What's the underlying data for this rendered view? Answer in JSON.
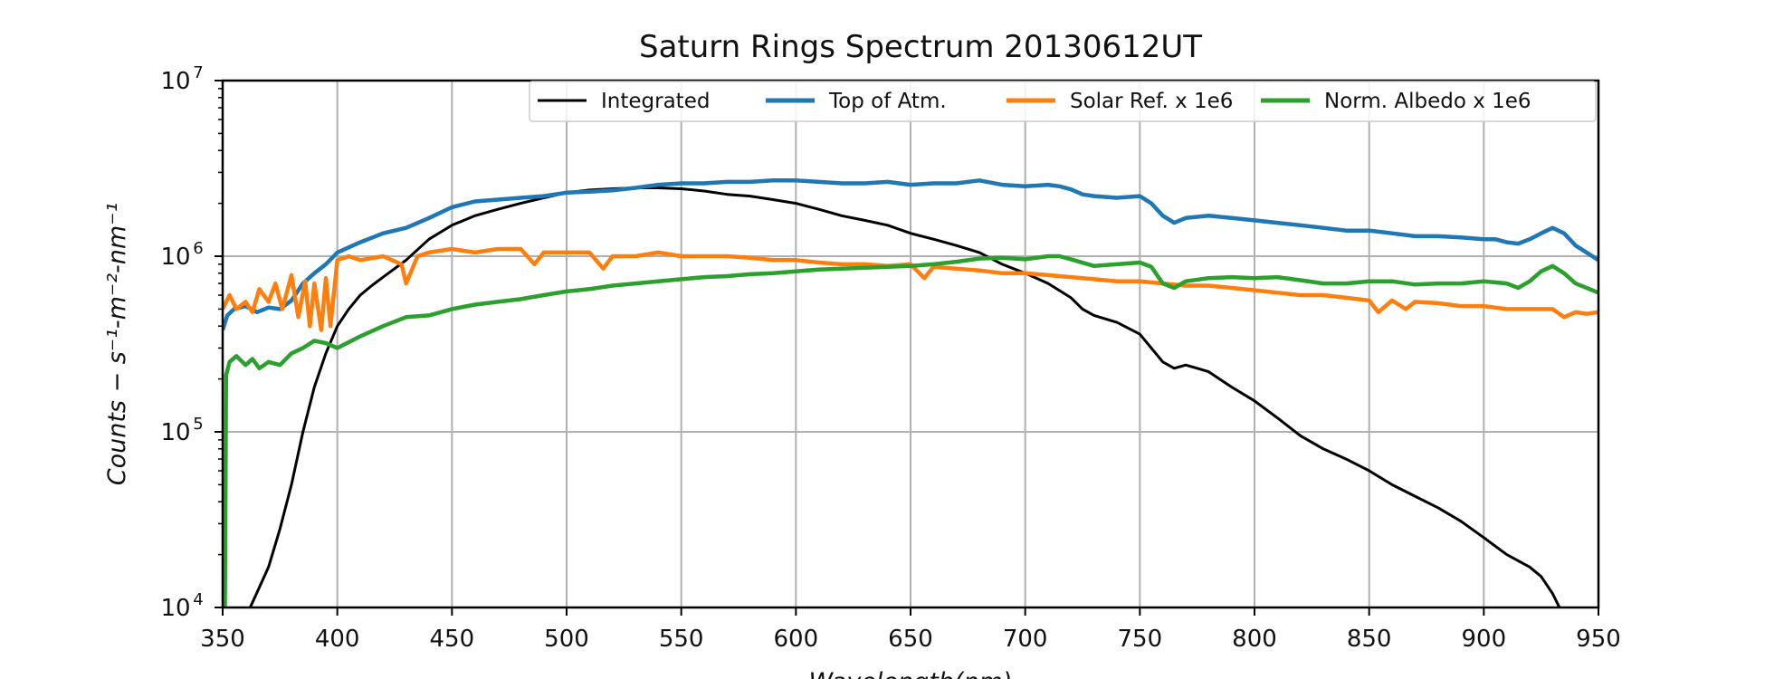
{
  "chart_data": {
    "type": "line",
    "title": "Saturn Rings Spectrum 20130612UT",
    "xlabel": "Wavelength(nm)",
    "ylabel": "Counts − s⁻¹-m⁻²-nm⁻¹",
    "xlim": [
      350,
      950
    ],
    "ylim": [
      10000,
      10000000
    ],
    "yscale": "log",
    "grid": true,
    "legend_position": "top-right",
    "x_ticks": [
      "350",
      "400",
      "450",
      "500",
      "550",
      "600",
      "650",
      "700",
      "750",
      "800",
      "850",
      "900",
      "950"
    ],
    "y_ticks": [
      {
        "value": 10000,
        "base": "10",
        "exp": "4"
      },
      {
        "value": 100000,
        "base": "10",
        "exp": "5"
      },
      {
        "value": 1000000,
        "base": "10",
        "exp": "6"
      },
      {
        "value": 10000000,
        "base": "10",
        "exp": "7"
      }
    ],
    "series": [
      {
        "name": "Integrated",
        "color": "#000000",
        "x": [
          362,
          366,
          370,
          375,
          380,
          385,
          390,
          395,
          400,
          405,
          410,
          415,
          420,
          430,
          440,
          450,
          460,
          470,
          480,
          490,
          500,
          510,
          520,
          530,
          540,
          550,
          560,
          570,
          580,
          590,
          600,
          610,
          620,
          630,
          640,
          650,
          660,
          670,
          680,
          690,
          700,
          710,
          720,
          725,
          730,
          740,
          750,
          760,
          765,
          770,
          775,
          780,
          790,
          800,
          810,
          820,
          830,
          840,
          850,
          860,
          870,
          880,
          890,
          900,
          910,
          920,
          925,
          930,
          933
        ],
        "y": [
          10000,
          13000,
          17000,
          28000,
          50000,
          100000,
          180000,
          280000,
          400000,
          500000,
          600000,
          680000,
          760000,
          950000,
          1250000,
          1500000,
          1700000,
          1850000,
          2000000,
          2150000,
          2300000,
          2380000,
          2420000,
          2450000,
          2450000,
          2420000,
          2350000,
          2250000,
          2200000,
          2100000,
          2000000,
          1850000,
          1700000,
          1600000,
          1500000,
          1350000,
          1250000,
          1150000,
          1050000,
          900000,
          800000,
          700000,
          580000,
          500000,
          460000,
          420000,
          360000,
          250000,
          230000,
          240000,
          230000,
          220000,
          180000,
          150000,
          120000,
          95000,
          80000,
          70000,
          60000,
          50000,
          43000,
          37000,
          31000,
          25000,
          20000,
          17000,
          15000,
          12000,
          10000
        ]
      },
      {
        "name": "Top of Atm.",
        "color": "#1f77b4",
        "x": [
          350,
          352,
          355,
          360,
          365,
          370,
          375,
          380,
          385,
          390,
          395,
          400,
          410,
          420,
          430,
          440,
          450,
          460,
          470,
          480,
          490,
          500,
          510,
          520,
          530,
          540,
          550,
          560,
          570,
          580,
          590,
          600,
          610,
          620,
          630,
          640,
          650,
          660,
          670,
          680,
          690,
          700,
          710,
          715,
          720,
          725,
          730,
          740,
          750,
          755,
          760,
          765,
          770,
          780,
          790,
          800,
          810,
          820,
          830,
          840,
          850,
          860,
          870,
          880,
          890,
          900,
          905,
          910,
          915,
          920,
          925,
          930,
          935,
          940,
          950
        ],
        "y": [
          380000,
          460000,
          500000,
          520000,
          480000,
          510000,
          500000,
          560000,
          700000,
          800000,
          900000,
          1050000,
          1200000,
          1350000,
          1450000,
          1650000,
          1900000,
          2050000,
          2100000,
          2150000,
          2200000,
          2300000,
          2330000,
          2370000,
          2450000,
          2550000,
          2600000,
          2600000,
          2650000,
          2650000,
          2700000,
          2700000,
          2650000,
          2600000,
          2600000,
          2650000,
          2550000,
          2600000,
          2600000,
          2700000,
          2550000,
          2500000,
          2550000,
          2500000,
          2400000,
          2250000,
          2200000,
          2150000,
          2200000,
          2000000,
          1700000,
          1550000,
          1650000,
          1700000,
          1650000,
          1600000,
          1550000,
          1500000,
          1450000,
          1400000,
          1400000,
          1350000,
          1300000,
          1300000,
          1280000,
          1250000,
          1250000,
          1200000,
          1180000,
          1250000,
          1350000,
          1450000,
          1350000,
          1150000,
          950000
        ]
      },
      {
        "name": "Solar Ref. x 1e6",
        "color": "#ff7f0e",
        "x": [
          350,
          353,
          356,
          360,
          363,
          366,
          370,
          373,
          376,
          380,
          383,
          386,
          388,
          390,
          393,
          395,
          397,
          400,
          405,
          410,
          420,
          428,
          430,
          435,
          440,
          450,
          460,
          470,
          480,
          486,
          490,
          500,
          510,
          516,
          520,
          530,
          540,
          550,
          560,
          570,
          580,
          590,
          600,
          610,
          620,
          630,
          640,
          650,
          656,
          660,
          670,
          680,
          690,
          700,
          710,
          720,
          730,
          740,
          750,
          760,
          770,
          780,
          790,
          800,
          810,
          820,
          830,
          840,
          850,
          854,
          860,
          866,
          870,
          880,
          890,
          900,
          910,
          920,
          930,
          935,
          940,
          945,
          950
        ],
        "y": [
          500000,
          600000,
          500000,
          550000,
          480000,
          650000,
          550000,
          700000,
          500000,
          780000,
          450000,
          720000,
          400000,
          700000,
          380000,
          750000,
          400000,
          950000,
          1000000,
          950000,
          1000000,
          900000,
          700000,
          1000000,
          1050000,
          1100000,
          1050000,
          1100000,
          1100000,
          900000,
          1050000,
          1050000,
          1050000,
          850000,
          1000000,
          1000000,
          1050000,
          1000000,
          1000000,
          1000000,
          980000,
          950000,
          950000,
          920000,
          900000,
          900000,
          880000,
          900000,
          750000,
          870000,
          850000,
          830000,
          800000,
          800000,
          780000,
          760000,
          740000,
          720000,
          720000,
          700000,
          680000,
          680000,
          660000,
          640000,
          620000,
          600000,
          600000,
          580000,
          560000,
          480000,
          560000,
          500000,
          550000,
          540000,
          520000,
          520000,
          500000,
          500000,
          500000,
          450000,
          480000,
          470000,
          480000
        ]
      },
      {
        "name": "Norm. Albedo x 1e6",
        "color": "#2ca02c",
        "x": [
          351,
          351.5,
          353,
          356,
          360,
          363,
          366,
          370,
          375,
          380,
          385,
          390,
          395,
          400,
          410,
          420,
          430,
          440,
          450,
          460,
          470,
          480,
          490,
          500,
          510,
          520,
          530,
          540,
          550,
          560,
          570,
          580,
          590,
          600,
          610,
          620,
          630,
          640,
          650,
          660,
          670,
          680,
          690,
          700,
          710,
          715,
          720,
          730,
          740,
          750,
          755,
          760,
          765,
          770,
          780,
          790,
          800,
          810,
          820,
          830,
          840,
          850,
          860,
          870,
          880,
          890,
          900,
          910,
          915,
          920,
          925,
          930,
          935,
          940,
          950
        ],
        "y": [
          10000,
          210000,
          250000,
          270000,
          240000,
          260000,
          230000,
          250000,
          240000,
          280000,
          300000,
          330000,
          320000,
          300000,
          350000,
          400000,
          450000,
          460000,
          500000,
          530000,
          550000,
          570000,
          600000,
          630000,
          650000,
          680000,
          700000,
          720000,
          740000,
          760000,
          770000,
          790000,
          800000,
          820000,
          840000,
          850000,
          860000,
          870000,
          880000,
          900000,
          930000,
          970000,
          980000,
          960000,
          1000000,
          1000000,
          960000,
          880000,
          900000,
          920000,
          870000,
          700000,
          660000,
          720000,
          750000,
          760000,
          750000,
          760000,
          730000,
          700000,
          700000,
          720000,
          720000,
          690000,
          700000,
          700000,
          720000,
          700000,
          660000,
          720000,
          820000,
          880000,
          800000,
          700000,
          620000
        ]
      }
    ]
  }
}
